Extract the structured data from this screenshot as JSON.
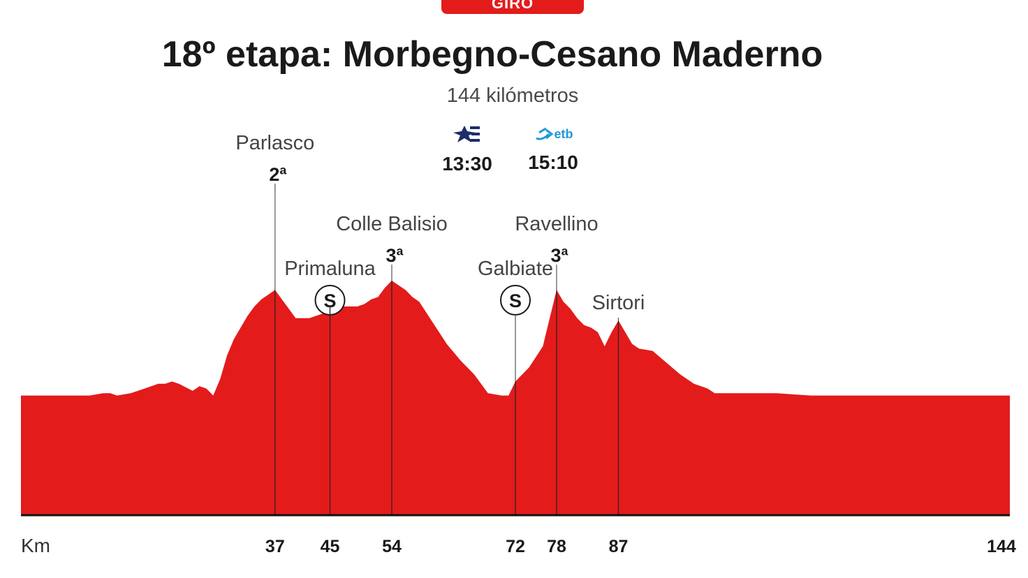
{
  "header": {
    "tag": "GIRO",
    "title": "18º etapa: Morbegno-Cesano Maderno",
    "subtitle": "144 kilómetros"
  },
  "broadcast": [
    {
      "icon": "teledeporte-icon",
      "time": "13:30",
      "color": "#1d2c6b"
    },
    {
      "icon": "etb-icon",
      "icon_text": "etb",
      "time": "15:10",
      "color": "#1e9ad6"
    }
  ],
  "colors": {
    "profile": "#e31b1b",
    "text": "#1a1a1a",
    "accent": "#e31b1b"
  },
  "chart_data": {
    "type": "area",
    "title": "18º etapa: Morbegno-Cesano Maderno",
    "xlabel": "Km",
    "ylabel": "",
    "xlim": [
      0,
      144
    ],
    "ylim": [
      0,
      100
    ],
    "x_ticks": [
      37,
      45,
      54,
      72,
      78,
      87,
      144
    ],
    "series": [
      {
        "x": [
          0,
          5,
          10,
          12,
          13,
          14,
          16,
          18,
          20,
          21,
          22,
          23,
          25,
          26,
          27,
          28,
          29,
          30,
          31,
          33,
          34,
          35,
          37,
          39,
          40,
          42,
          44,
          45,
          46,
          47,
          48,
          49,
          50,
          51,
          52,
          53,
          54,
          55,
          56,
          57,
          58,
          60,
          62,
          64,
          66,
          68,
          70,
          71,
          72,
          73,
          74,
          76,
          78,
          79,
          80,
          81,
          82,
          83,
          84,
          85,
          86,
          87,
          88,
          89,
          90,
          92,
          94,
          96,
          98,
          100,
          101,
          105,
          110,
          115,
          120,
          125,
          130,
          135,
          140,
          144
        ],
        "y": [
          51,
          51,
          51,
          52,
          52,
          51,
          52,
          54,
          56,
          56,
          57,
          56,
          53,
          55,
          54,
          51,
          58,
          68,
          75,
          85,
          89,
          92,
          96,
          88,
          84,
          84,
          86,
          89,
          90,
          89,
          89,
          89,
          90,
          92,
          93,
          97,
          100,
          98,
          96,
          93,
          91,
          82,
          73,
          66,
          60,
          52,
          51,
          51,
          57,
          60,
          63,
          72,
          96,
          91,
          88,
          84,
          81,
          80,
          78,
          72,
          78,
          83,
          78,
          73,
          71,
          70,
          65,
          60,
          56,
          54,
          52,
          52,
          52,
          51,
          51,
          51,
          51,
          51,
          51,
          51
        ]
      }
    ],
    "annotations": [
      {
        "km": 37,
        "name": "Parlasco",
        "category": "2ª"
      },
      {
        "km": 45,
        "name": "Primaluna",
        "badge": "S"
      },
      {
        "km": 54,
        "name": "Colle Balisio",
        "category": "3ª"
      },
      {
        "km": 72,
        "name": "Galbiate",
        "badge": "S"
      },
      {
        "km": 78,
        "name": "Ravellino",
        "category": "3ª"
      },
      {
        "km": 87,
        "name": "Sirtori"
      }
    ]
  }
}
